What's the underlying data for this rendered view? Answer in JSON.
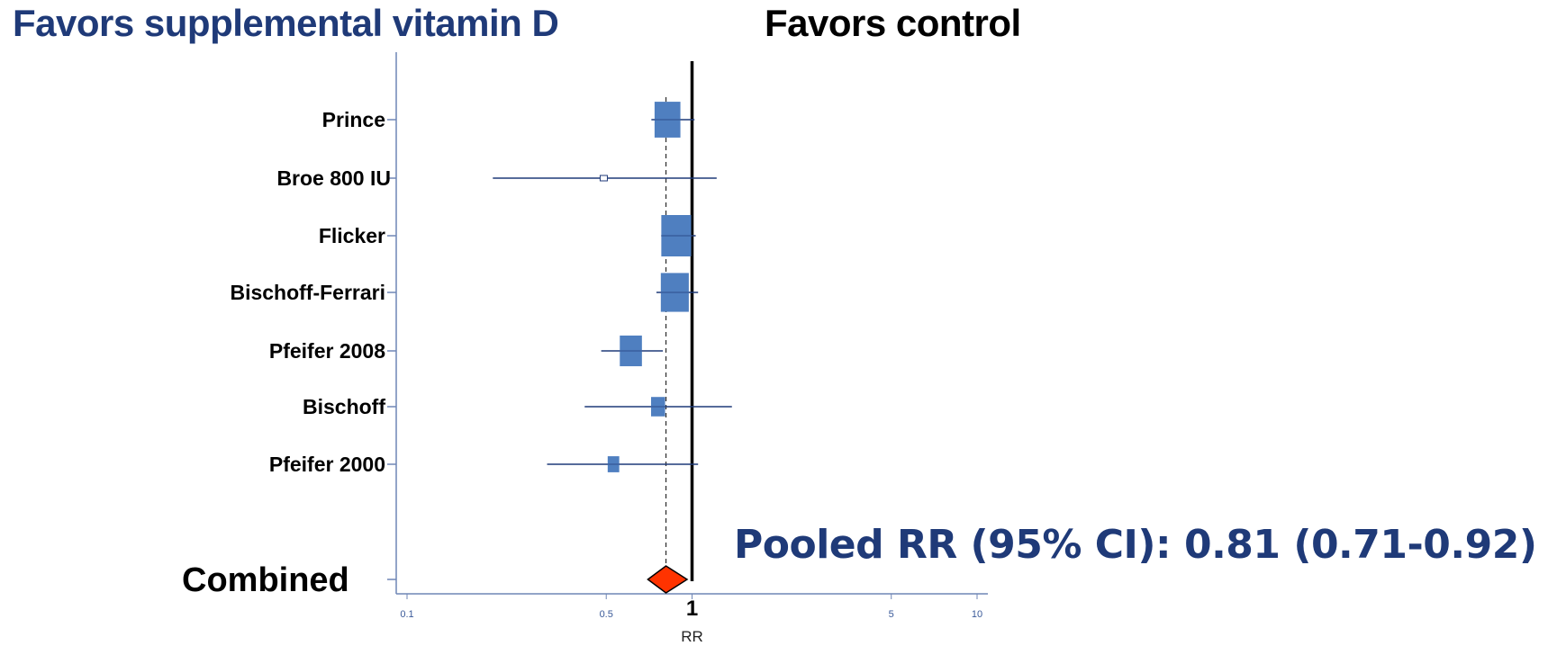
{
  "header": {
    "left": "Favors supplemental vitamin D",
    "right": "Favors control"
  },
  "pooled_text": "Pooled RR (95% CI): 0.81 (0.71-0.92)",
  "colors": {
    "box": "#4f7fc0",
    "ci": "#1f3a78",
    "diamond": "#ff3300",
    "axis": "#6f86b5",
    "header_blue": "#1f3a78"
  },
  "chart_data": {
    "type": "forest",
    "xlabel": "RR",
    "x_scale": "log",
    "xlim": [
      0.1,
      10
    ],
    "ticks": [
      {
        "value": 0.1,
        "label": "0.1"
      },
      {
        "value": 0.5,
        "label": "0.5"
      },
      {
        "value": 1,
        "label": "1"
      },
      {
        "value": 5,
        "label": "5"
      },
      {
        "value": 10,
        "label": "10"
      }
    ],
    "null_line": 1,
    "pooled_line": 0.81,
    "studies": [
      {
        "name": "Prince",
        "rr": 0.82,
        "lo": 0.72,
        "hi": 1.02,
        "weight": 0.75
      },
      {
        "name": "Broe 800 IU",
        "rr": 0.49,
        "lo": 0.2,
        "hi": 1.22,
        "weight": 0.08
      },
      {
        "name": "Flicker",
        "rr": 0.88,
        "lo": 0.78,
        "hi": 1.03,
        "weight": 1.0
      },
      {
        "name": "Bischoff-Ferrari",
        "rr": 0.87,
        "lo": 0.75,
        "hi": 1.05,
        "weight": 0.88
      },
      {
        "name": "Pfeifer 2008",
        "rr": 0.61,
        "lo": 0.48,
        "hi": 0.79,
        "weight": 0.55
      },
      {
        "name": "Bischoff",
        "rr": 0.76,
        "lo": 0.42,
        "hi": 1.38,
        "weight": 0.22
      },
      {
        "name": "Pfeifer 2000",
        "rr": 0.53,
        "lo": 0.31,
        "hi": 1.05,
        "weight": 0.15
      }
    ],
    "combined": {
      "name": "Combined",
      "rr": 0.81,
      "lo": 0.71,
      "hi": 0.92
    }
  }
}
